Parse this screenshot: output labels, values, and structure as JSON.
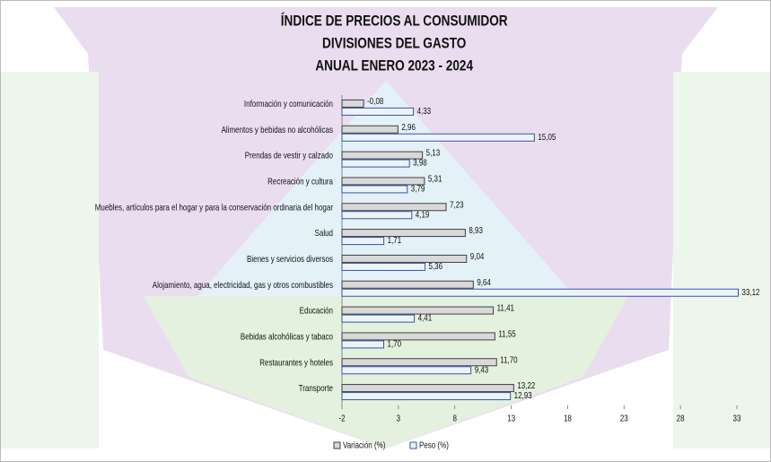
{
  "chart_data": {
    "type": "hbar",
    "title": [
      "ÍNDICE DE PRECIOS AL CONSUMIDOR",
      "DIVISIONES DEL GASTO",
      "ANUAL ENERO 2023 - 2024"
    ],
    "categories": [
      "Información y comunicación",
      "Alimentos y bebidas no alcohólicas",
      "Prendas de vestir y calzado",
      "Recreación y cultura",
      "Muebles, artículos para el hogar y para la conservación ordinaria del hogar",
      "Salud",
      "Bienes y servicios diversos",
      "Alojamiento, agua, electricidad, gas y otros combustibles",
      "Educación",
      "Bebidas alcohólicas y tabaco",
      "Restaurantes y hoteles",
      "Transporte"
    ],
    "series": [
      {
        "name": "Variación (%)",
        "color": "#d9d9d9",
        "stroke": "#404040",
        "values": [
          -0.08,
          2.96,
          5.13,
          5.31,
          7.23,
          8.93,
          9.04,
          9.64,
          11.41,
          11.55,
          11.7,
          13.22
        ],
        "value_labels": [
          "-0,08",
          "2,96",
          "5,13",
          "5,31",
          "7,23",
          "8,93",
          "9,04",
          "9,64",
          "11,41",
          "11,55",
          "11,70",
          "13,22"
        ]
      },
      {
        "name": "Peso (%)",
        "color": "#eef3fb",
        "stroke": "#3355aa",
        "values": [
          4.33,
          15.05,
          3.98,
          3.79,
          4.19,
          1.71,
          5.36,
          33.12,
          4.41,
          1.7,
          9.43,
          12.93
        ],
        "value_labels": [
          "4,33",
          "15,05",
          "3,98",
          "3,79",
          "4,19",
          "1,71",
          "5,36",
          "33,12",
          "4,41",
          "1,70",
          "9,43",
          "12,93"
        ]
      }
    ],
    "xlim": [
      -2,
      33
    ],
    "xticks": [
      -2,
      3,
      8,
      13,
      18,
      23,
      28,
      33
    ],
    "legend": "bottom"
  }
}
